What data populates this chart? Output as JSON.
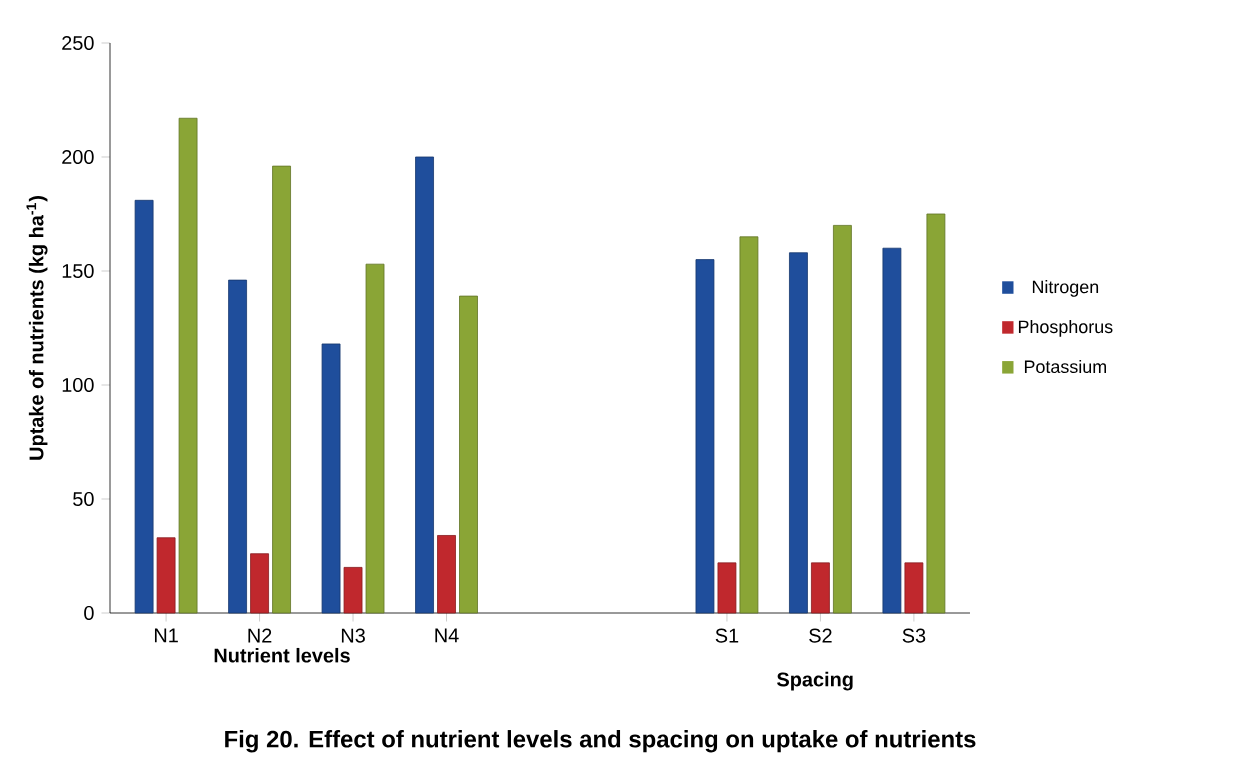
{
  "chart_data": {
    "type": "bar",
    "xlabel": "Nutrient levels",
    "ylabel": "Uptake of nutrients (kg ha$^{-1}$)",
    "categories": [
      "N1",
      "N2",
      "N3",
      "N4",
      null,
      null,
      "S1",
      "S2",
      "S3"
    ],
    "series": [
      {
        "name": "Nitrogen",
        "color": "#1f4e9c",
        "values": [
          181,
          146,
          118,
          200,
          null,
          null,
          155,
          158,
          160
        ]
      },
      {
        "name": "Phosphorus",
        "color": "#c0282d",
        "values": [
          33,
          26,
          20,
          34,
          null,
          null,
          22,
          22,
          22
        ]
      },
      {
        "name": "Potassium",
        "color": "#8aa536",
        "values": [
          217,
          196,
          153,
          139,
          null,
          null,
          165,
          170,
          175
        ]
      }
    ],
    "ylim": [
      0,
      250
    ],
    "yticks": [
      0,
      50,
      100,
      150,
      200,
      250
    ],
    "grid": false,
    "legend": "right",
    "annotations": [
      "Spacing",
      "Fig 20. Effect of nutrient levels and spacing on uptake of nutrients"
    ]
  }
}
